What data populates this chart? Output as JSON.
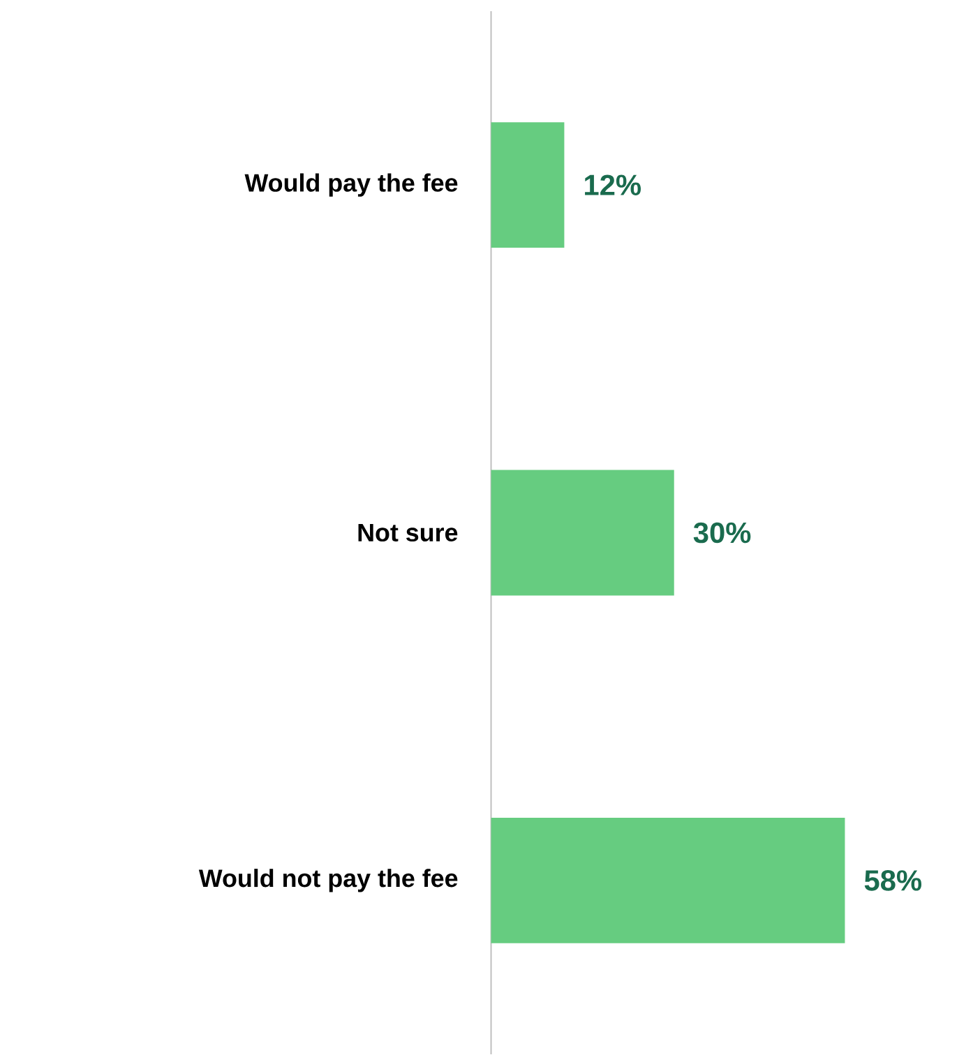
{
  "chart_data": {
    "type": "bar",
    "orientation": "horizontal",
    "categories": [
      "Would pay the fee",
      "Not sure",
      "Would not pay the fee"
    ],
    "values": [
      12,
      30,
      58
    ],
    "value_labels": [
      "12%",
      "30%",
      "58%"
    ],
    "color": "#66cc80"
  }
}
